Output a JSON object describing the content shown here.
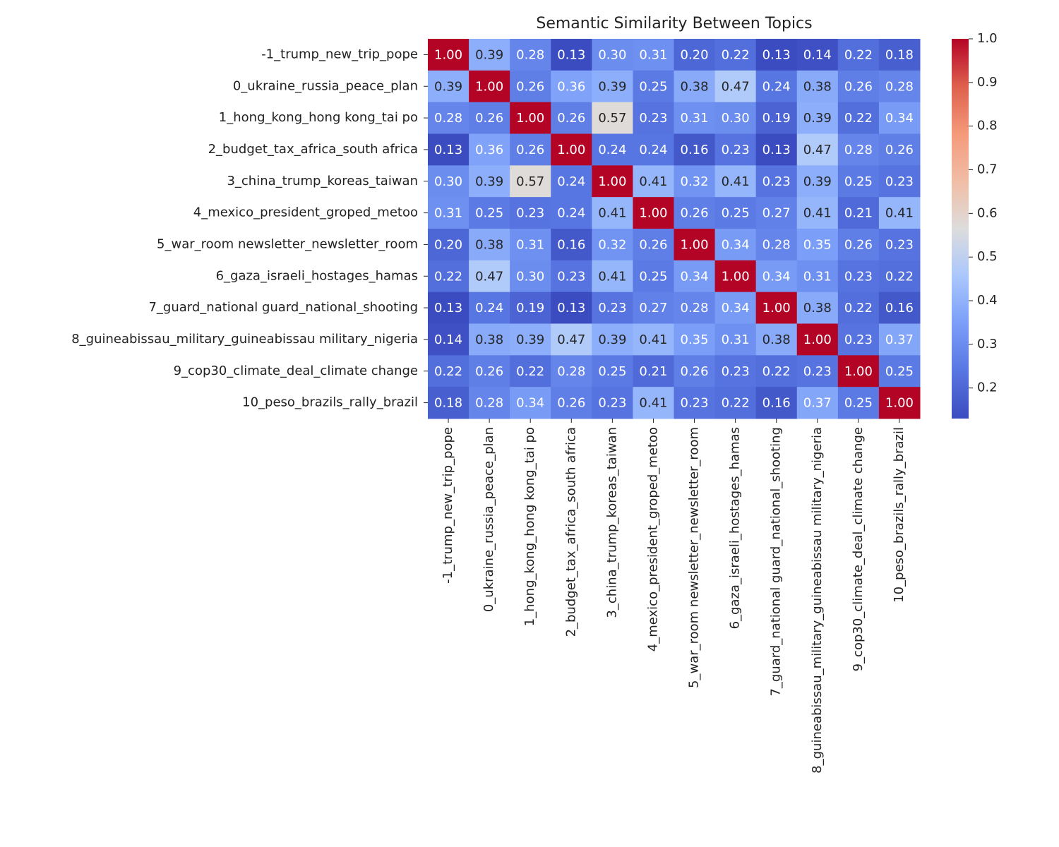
{
  "chart_data": {
    "type": "heatmap",
    "title": "Semantic Similarity Between Topics",
    "categories": [
      "-1_trump_new_trip_pope",
      "0_ukraine_russia_peace_plan",
      "1_hong_kong_hong kong_tai po",
      "2_budget_tax_africa_south africa",
      "3_china_trump_koreas_taiwan",
      "4_mexico_president_groped_metoo",
      "5_war_room newsletter_newsletter_room",
      "6_gaza_israeli_hostages_hamas",
      "7_guard_national guard_national_shooting",
      "8_guineabissau_military_guineabissau military_nigeria",
      "9_cop30_climate_deal_climate change",
      "10_peso_brazils_rally_brazil"
    ],
    "values": [
      [
        1,
        0.39,
        0.28,
        0.13,
        0.3,
        0.31,
        0.2,
        0.22,
        0.13,
        0.14,
        0.22,
        0.18
      ],
      [
        0.39,
        1,
        0.26,
        0.36,
        0.39,
        0.25,
        0.38,
        0.47,
        0.24,
        0.38,
        0.26,
        0.28
      ],
      [
        0.28,
        0.26,
        1,
        0.26,
        0.57,
        0.23,
        0.31,
        0.3,
        0.19,
        0.39,
        0.22,
        0.34
      ],
      [
        0.13,
        0.36,
        0.26,
        1,
        0.24,
        0.24,
        0.16,
        0.23,
        0.13,
        0.47,
        0.28,
        0.26
      ],
      [
        0.3,
        0.39,
        0.57,
        0.24,
        1,
        0.41,
        0.32,
        0.41,
        0.23,
        0.39,
        0.25,
        0.23
      ],
      [
        0.31,
        0.25,
        0.23,
        0.24,
        0.41,
        1,
        0.26,
        0.25,
        0.27,
        0.41,
        0.21,
        0.41
      ],
      [
        0.2,
        0.38,
        0.31,
        0.16,
        0.32,
        0.26,
        1,
        0.34,
        0.28,
        0.35,
        0.26,
        0.23
      ],
      [
        0.22,
        0.47,
        0.3,
        0.23,
        0.41,
        0.25,
        0.34,
        1,
        0.34,
        0.31,
        0.23,
        0.22
      ],
      [
        0.13,
        0.24,
        0.19,
        0.13,
        0.23,
        0.27,
        0.28,
        0.34,
        1,
        0.38,
        0.22,
        0.16
      ],
      [
        0.14,
        0.38,
        0.39,
        0.47,
        0.39,
        0.41,
        0.35,
        0.31,
        0.38,
        1,
        0.23,
        0.37
      ],
      [
        0.22,
        0.26,
        0.22,
        0.28,
        0.25,
        0.21,
        0.26,
        0.23,
        0.22,
        0.23,
        1,
        0.25
      ],
      [
        0.18,
        0.28,
        0.34,
        0.26,
        0.23,
        0.41,
        0.23,
        0.22,
        0.16,
        0.37,
        0.25,
        1
      ]
    ],
    "value_labels": [
      [
        "1.00",
        "0.39",
        "0.28",
        "0.13",
        "0.30",
        "0.31",
        "0.20",
        "0.22",
        "0.13",
        "0.14",
        "0.22",
        "0.18"
      ],
      [
        "0.39",
        "1.00",
        "0.26",
        "0.36",
        "0.39",
        "0.25",
        "0.38",
        "0.47",
        "0.24",
        "0.38",
        "0.26",
        "0.28"
      ],
      [
        "0.28",
        "0.26",
        "1.00",
        "0.26",
        "0.57",
        "0.23",
        "0.31",
        "0.30",
        "0.19",
        "0.39",
        "0.22",
        "0.34"
      ],
      [
        "0.13",
        "0.36",
        "0.26",
        "1.00",
        "0.24",
        "0.24",
        "0.16",
        "0.23",
        "0.13",
        "0.47",
        "0.28",
        "0.26"
      ],
      [
        "0.30",
        "0.39",
        "0.57",
        "0.24",
        "1.00",
        "0.41",
        "0.32",
        "0.41",
        "0.23",
        "0.39",
        "0.25",
        "0.23"
      ],
      [
        "0.31",
        "0.25",
        "0.23",
        "0.24",
        "0.41",
        "1.00",
        "0.26",
        "0.25",
        "0.27",
        "0.41",
        "0.21",
        "0.41"
      ],
      [
        "0.20",
        "0.38",
        "0.31",
        "0.16",
        "0.32",
        "0.26",
        "1.00",
        "0.34",
        "0.28",
        "0.35",
        "0.26",
        "0.23"
      ],
      [
        "0.22",
        "0.47",
        "0.30",
        "0.23",
        "0.41",
        "0.25",
        "0.34",
        "1.00",
        "0.34",
        "0.31",
        "0.23",
        "0.22"
      ],
      [
        "0.13",
        "0.24",
        "0.19",
        "0.13",
        "0.23",
        "0.27",
        "0.28",
        "0.34",
        "1.00",
        "0.38",
        "0.22",
        "0.16"
      ],
      [
        "0.14",
        "0.38",
        "0.39",
        "0.47",
        "0.39",
        "0.41",
        "0.35",
        "0.31",
        "0.38",
        "1.00",
        "0.23",
        "0.37"
      ],
      [
        "0.22",
        "0.26",
        "0.22",
        "0.28",
        "0.25",
        "0.21",
        "0.26",
        "0.23",
        "0.22",
        "0.23",
        "1.00",
        "0.25"
      ],
      [
        "0.18",
        "0.28",
        "0.34",
        "0.26",
        "0.23",
        "0.41",
        "0.23",
        "0.22",
        "0.16",
        "0.37",
        "0.25",
        "1.00"
      ]
    ],
    "colormap": "coolwarm",
    "clim": [
      0.13,
      1
    ],
    "cticks": [
      0.2,
      0.3,
      0.4,
      0.5,
      0.6,
      0.7,
      0.8,
      0.9,
      {
        "value": 1,
        "label": "1.0"
      }
    ]
  }
}
